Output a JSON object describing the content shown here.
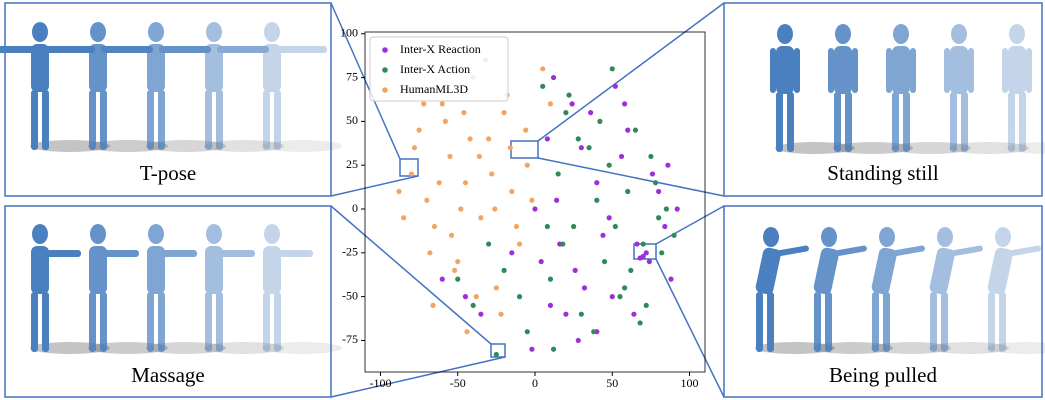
{
  "chart_data": {
    "type": "scatter",
    "series": [
      {
        "name": "Inter-X Reaction",
        "color": "#9b30d9",
        "x": [
          0,
          8,
          16,
          24,
          32,
          40,
          48,
          56,
          64,
          72,
          80,
          88,
          -2,
          12,
          20,
          36,
          44,
          60,
          68,
          76,
          84,
          92,
          -15,
          -35,
          -45,
          -60,
          4,
          28,
          52,
          70,
          66,
          30,
          14,
          50,
          86,
          26,
          40,
          58,
          74,
          10
        ],
        "values": [
          0,
          40,
          -20,
          60,
          -45,
          15,
          -5,
          30,
          -60,
          -25,
          10,
          -40,
          -80,
          75,
          -60,
          55,
          -15,
          45,
          -28,
          20,
          -10,
          0,
          -25,
          -60,
          -50,
          -40,
          -30,
          -75,
          70,
          -27,
          -20,
          35,
          5,
          -50,
          25,
          -35,
          -70,
          60,
          -30,
          -55
        ]
      },
      {
        "name": "Inter-X Action",
        "color": "#2e8b57",
        "x": [
          5,
          10,
          15,
          20,
          25,
          30,
          35,
          40,
          45,
          50,
          55,
          60,
          65,
          70,
          75,
          80,
          85,
          90,
          -5,
          -10,
          -20,
          -30,
          -40,
          -50,
          12,
          28,
          38,
          48,
          58,
          68,
          78,
          22,
          42,
          62,
          82,
          18,
          52,
          72,
          -25,
          8
        ],
        "values": [
          70,
          -40,
          20,
          55,
          -10,
          -60,
          35,
          5,
          -30,
          80,
          -50,
          10,
          45,
          -20,
          30,
          -5,
          0,
          -15,
          -70,
          -50,
          -35,
          -20,
          -55,
          -40,
          -80,
          40,
          -70,
          25,
          -45,
          -65,
          15,
          65,
          50,
          -35,
          -25,
          -20,
          -10,
          -55,
          -83,
          -10
        ]
      },
      {
        "name": "HumanML3D",
        "color": "#f4a460",
        "x": [
          -80,
          -75,
          -70,
          -65,
          -60,
          -55,
          -50,
          -45,
          -40,
          -35,
          -30,
          -25,
          -20,
          -15,
          -10,
          -5,
          -85,
          -78,
          -68,
          -58,
          -48,
          -38,
          -28,
          -18,
          -62,
          -52,
          -42,
          -32,
          -22,
          -12,
          -72,
          -66,
          -44,
          -36,
          -26,
          -6,
          -88,
          -54,
          -46,
          -16,
          5,
          10,
          -2
        ],
        "values": [
          20,
          45,
          5,
          -10,
          60,
          30,
          -30,
          15,
          75,
          -5,
          40,
          -45,
          55,
          10,
          -20,
          25,
          -5,
          35,
          -25,
          50,
          0,
          -50,
          20,
          65,
          15,
          -35,
          40,
          85,
          -60,
          -10,
          60,
          -55,
          -70,
          30,
          0,
          45,
          10,
          -15,
          55,
          35,
          80,
          60,
          5
        ]
      }
    ],
    "xlim": [
      -110,
      110
    ],
    "ylim": [
      -93,
      101
    ],
    "xticks": [
      -100,
      -50,
      0,
      50,
      100
    ],
    "yticks": [
      -75,
      -50,
      -25,
      0,
      25,
      50,
      75,
      100
    ],
    "grid": false,
    "legend": "upper left"
  },
  "panels": [
    "T-pose",
    "Massage",
    "Standing still",
    "Being pulled"
  ]
}
